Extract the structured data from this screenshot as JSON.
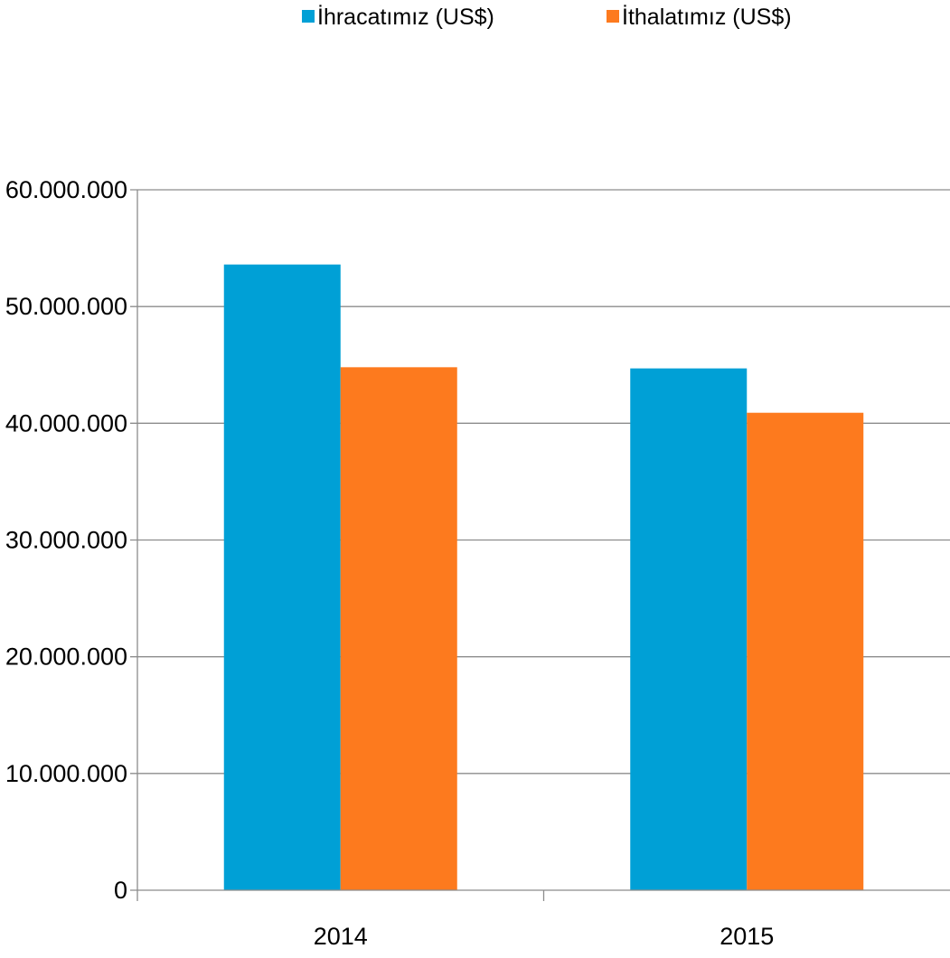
{
  "chart_data": {
    "type": "bar",
    "categories": [
      "2014",
      "2015"
    ],
    "series": [
      {
        "name": "İhracatımız (US$)",
        "color": "#00a0d6",
        "values": [
          53600000,
          44700000
        ]
      },
      {
        "name": "İthalatımız (US$)",
        "color": "#fd7a1e",
        "values": [
          44800000,
          40900000
        ]
      }
    ],
    "yticks": [
      "0",
      "10.000.000",
      "20.000.000",
      "30.000.000",
      "40.000.000",
      "50.000.000",
      "60.000.000"
    ],
    "ylim": [
      0,
      60000000
    ],
    "grid": true,
    "legend_position": "top",
    "title": "",
    "xlabel": "",
    "ylabel": ""
  }
}
